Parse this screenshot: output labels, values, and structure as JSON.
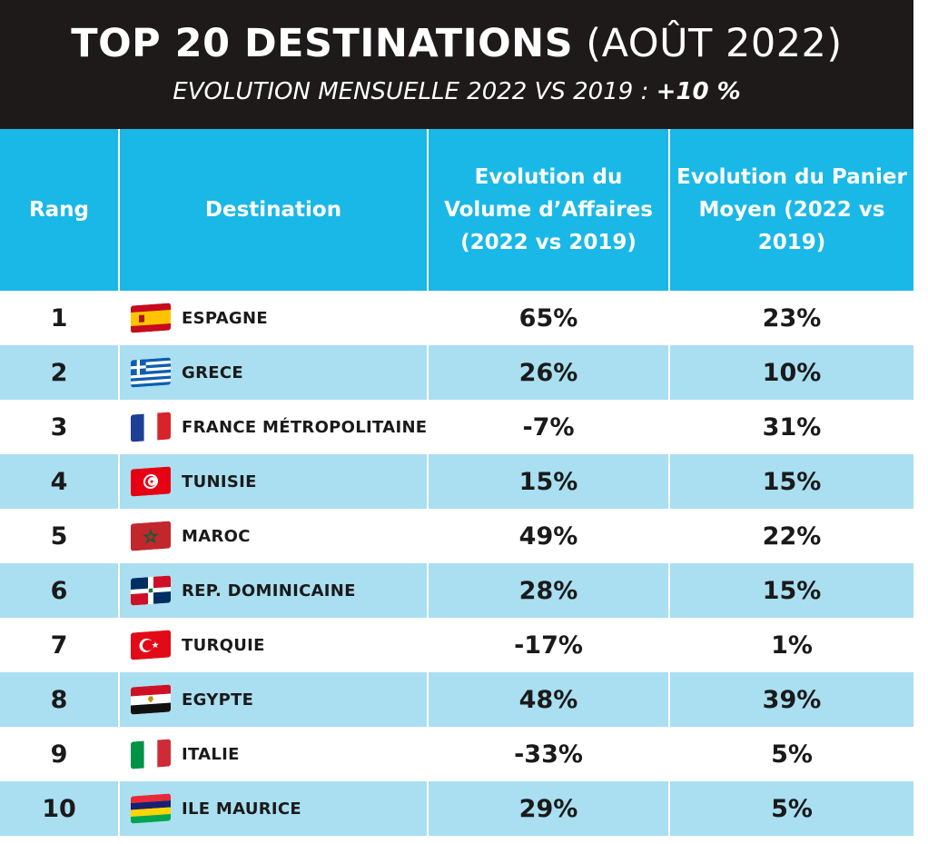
{
  "header": {
    "title_bold": "TOP 20 DESTINATIONS",
    "title_light": "(AOÛT 2022)",
    "subtitle_prefix": "EVOLUTION MENSUELLE 2022 VS 2019 :",
    "subtitle_value": "+10 %"
  },
  "table": {
    "columns": [
      {
        "label": "Rang"
      },
      {
        "label": "Destination"
      },
      {
        "label": "Evolution du Volume d’Affaires (2022 vs 2019)"
      },
      {
        "label": "Evolution du Panier Moyen (2022 vs 2019)"
      }
    ],
    "rows": [
      {
        "rank": "1",
        "destination": "ESPAGNE",
        "flag": "spain-flag-icon",
        "volume": "65%",
        "panier": "23%"
      },
      {
        "rank": "2",
        "destination": "GRECE",
        "flag": "greece-flag-icon",
        "volume": "26%",
        "panier": "10%"
      },
      {
        "rank": "3",
        "destination": "FRANCE MÉTROPOLITAINE",
        "flag": "france-flag-icon",
        "volume": "-7%",
        "panier": "31%"
      },
      {
        "rank": "4",
        "destination": "TUNISIE",
        "flag": "tunisia-flag-icon",
        "volume": "15%",
        "panier": "15%"
      },
      {
        "rank": "5",
        "destination": "MAROC",
        "flag": "morocco-flag-icon",
        "volume": "49%",
        "panier": "22%"
      },
      {
        "rank": "6",
        "destination": "REP. DOMINICAINE",
        "flag": "dominican-republic-flag-icon",
        "volume": "28%",
        "panier": "15%"
      },
      {
        "rank": "7",
        "destination": "TURQUIE",
        "flag": "turkey-flag-icon",
        "volume": "-17%",
        "panier": "1%"
      },
      {
        "rank": "8",
        "destination": "EGYPTE",
        "flag": "egypt-flag-icon",
        "volume": "48%",
        "panier": "39%"
      },
      {
        "rank": "9",
        "destination": "ITALIE",
        "flag": "italy-flag-icon",
        "volume": "-33%",
        "panier": "5%"
      },
      {
        "rank": "10",
        "destination": "ILE MAURICE",
        "flag": "mauritius-flag-icon",
        "volume": "29%",
        "panier": "5%"
      }
    ]
  },
  "colors": {
    "title_bg": "#1e1a1a",
    "header_bg": "#1ab8e6",
    "row_alt_bg": "#a9dff1",
    "row_bg": "#ffffff"
  }
}
